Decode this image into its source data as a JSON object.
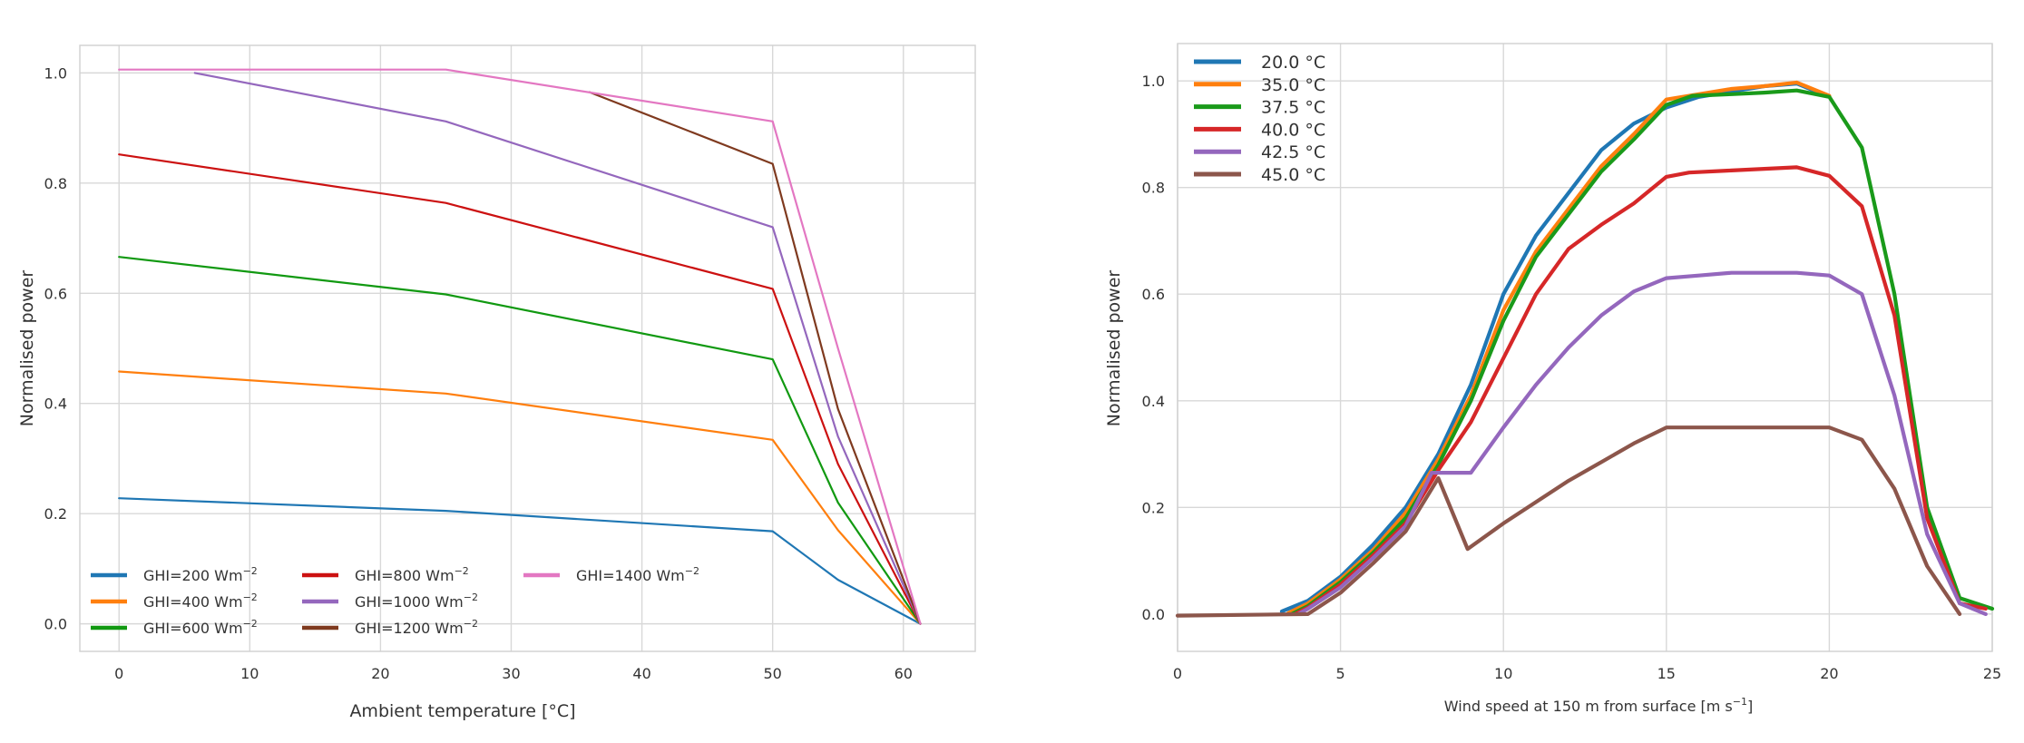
{
  "chart_data": [
    {
      "type": "line",
      "xlabel": "Ambient temperature [°C]",
      "ylabel": "Normalised power",
      "xlim": [
        -3,
        65.5
      ],
      "ylim": [
        -0.05,
        1.05
      ],
      "xticks": [
        "0",
        "10",
        "20",
        "30",
        "40",
        "50",
        "60"
      ],
      "xtick_values": [
        0,
        10,
        20,
        30,
        40,
        50,
        60
      ],
      "yticks": [
        "0.0",
        "0.2",
        "0.4",
        "0.6",
        "0.8",
        "1.0"
      ],
      "ytick_values": [
        0,
        0.2,
        0.4,
        0.6,
        0.8,
        1.0
      ],
      "grid": true,
      "legend_placement": "lower-left",
      "legend_columns": 3,
      "series": [
        {
          "name": "GHI=200 Wm",
          "name_sup": "−2",
          "color": "#1f77b4",
          "x": [
            0,
            25,
            50,
            55,
            61.3
          ],
          "y": [
            0.228,
            0.205,
            0.168,
            0.08,
            0.0
          ]
        },
        {
          "name": "GHI=400 Wm",
          "name_sup": "−2",
          "color": "#ff7f0e",
          "x": [
            0,
            25,
            50,
            55,
            61.3
          ],
          "y": [
            0.458,
            0.418,
            0.334,
            0.17,
            0.0
          ]
        },
        {
          "name": "GHI=600 Wm",
          "name_sup": "−2",
          "color": "#119911",
          "x": [
            0,
            25,
            50,
            55,
            61.3
          ],
          "y": [
            0.666,
            0.598,
            0.48,
            0.22,
            0.0
          ]
        },
        {
          "name": "GHI=800 Wm",
          "name_sup": "−2",
          "color": "#cc1111",
          "x": [
            0,
            25,
            50,
            55,
            61.3
          ],
          "y": [
            0.852,
            0.764,
            0.608,
            0.29,
            0.0
          ]
        },
        {
          "name": "GHI=1000 Wm",
          "name_sup": "−2",
          "color": "#9467bd",
          "x": [
            5.8,
            25,
            50,
            55,
            61.3
          ],
          "y": [
            1.0,
            0.912,
            0.72,
            0.34,
            0.0
          ]
        },
        {
          "name": "GHI=1200 Wm",
          "name_sup": "−2",
          "color": "#7f3a1f",
          "x": [
            36,
            50,
            55,
            61.3
          ],
          "y": [
            0.965,
            0.835,
            0.39,
            0.0
          ]
        },
        {
          "name": "GHI=1400 Wm",
          "name_sup": "−2",
          "color": "#e377c2",
          "x": [
            0,
            25,
            50,
            55,
            61.3
          ],
          "y": [
            1.006,
            1.006,
            0.912,
            0.5,
            0.0
          ]
        }
      ]
    },
    {
      "type": "line",
      "xlabel": "Wind speed at 150 m from surface [m s",
      "xlabel_sup": "−1",
      "xlabel_end": "]",
      "ylabel": "Normalised power",
      "xlim": [
        0,
        25
      ],
      "ylim": [
        -0.07,
        1.07
      ],
      "xticks": [
        "0",
        "5",
        "10",
        "15",
        "20",
        "25"
      ],
      "xtick_values": [
        0,
        5,
        10,
        15,
        20,
        25
      ],
      "yticks": [
        "0.0",
        "0.2",
        "0.4",
        "0.6",
        "0.8",
        "1.0"
      ],
      "ytick_values": [
        0,
        0.2,
        0.4,
        0.6,
        0.8,
        1.0
      ],
      "grid": true,
      "legend_placement": "upper-left",
      "series": [
        {
          "name": "20.0 °C",
          "color": "#1f77b4",
          "x": [
            3.2,
            4,
            5,
            6,
            7,
            8,
            9,
            10,
            11,
            12,
            13,
            14,
            15,
            16,
            17,
            18,
            19,
            20
          ],
          "y": [
            0.005,
            0.025,
            0.07,
            0.13,
            0.2,
            0.3,
            0.43,
            0.6,
            0.71,
            0.79,
            0.87,
            0.92,
            0.95,
            0.97,
            0.98,
            0.99,
            0.995,
            0.97
          ]
        },
        {
          "name": "35.0 °C",
          "color": "#ff7f0e",
          "x": [
            3.4,
            4,
            5,
            6,
            7,
            8,
            9,
            10,
            11,
            12,
            13,
            14,
            15,
            16,
            17,
            18,
            19,
            20
          ],
          "y": [
            0.002,
            0.02,
            0.065,
            0.12,
            0.19,
            0.29,
            0.41,
            0.57,
            0.68,
            0.76,
            0.84,
            0.9,
            0.965,
            0.975,
            0.985,
            0.99,
            0.997,
            0.972
          ]
        },
        {
          "name": "37.5 °C",
          "color": "#1a9a1a",
          "x": [
            3.5,
            4,
            5,
            6,
            7,
            8,
            9,
            10,
            11,
            12,
            13,
            14,
            15,
            15.8,
            17,
            18,
            19,
            20,
            21,
            22,
            23,
            24,
            25
          ],
          "y": [
            0.0,
            0.015,
            0.06,
            0.115,
            0.18,
            0.28,
            0.4,
            0.55,
            0.67,
            0.75,
            0.83,
            0.89,
            0.955,
            0.972,
            0.975,
            0.978,
            0.982,
            0.97,
            0.875,
            0.6,
            0.2,
            0.03,
            0.01
          ]
        },
        {
          "name": "40.0 °C",
          "color": "#d62728",
          "x": [
            3.6,
            4,
            5,
            6,
            7,
            8,
            9,
            10,
            11,
            12,
            13,
            14,
            15,
            15.7,
            17,
            18,
            19,
            20,
            21,
            22,
            23,
            24,
            24.8
          ],
          "y": [
            0.0,
            0.012,
            0.055,
            0.11,
            0.17,
            0.27,
            0.36,
            0.48,
            0.6,
            0.685,
            0.73,
            0.77,
            0.82,
            0.828,
            0.832,
            0.835,
            0.838,
            0.822,
            0.765,
            0.56,
            0.18,
            0.02,
            0.01
          ]
        },
        {
          "name": "42.5 °C",
          "color": "#9467bd",
          "x": [
            3.7,
            4,
            5,
            6,
            7,
            7.8,
            9,
            10,
            11,
            12,
            13,
            14,
            15,
            16,
            17,
            18,
            19,
            20,
            21,
            22,
            23,
            24,
            24.8
          ],
          "y": [
            0.0,
            0.01,
            0.05,
            0.105,
            0.165,
            0.265,
            0.265,
            0.35,
            0.43,
            0.5,
            0.56,
            0.605,
            0.63,
            0.635,
            0.64,
            0.64,
            0.64,
            0.635,
            0.6,
            0.41,
            0.15,
            0.02,
            0.0
          ]
        },
        {
          "name": "45.0 °C",
          "color": "#8c564b",
          "x": [
            0,
            4,
            5,
            6,
            7,
            8,
            8.9,
            10,
            11,
            12,
            13,
            14,
            15,
            16,
            17,
            18,
            19,
            20,
            21,
            22,
            23,
            24
          ],
          "y": [
            -0.003,
            0.0,
            0.04,
            0.095,
            0.155,
            0.255,
            0.122,
            0.17,
            0.21,
            0.25,
            0.285,
            0.32,
            0.35,
            0.35,
            0.35,
            0.35,
            0.35,
            0.35,
            0.327,
            0.235,
            0.09,
            0.0
          ]
        }
      ]
    }
  ]
}
